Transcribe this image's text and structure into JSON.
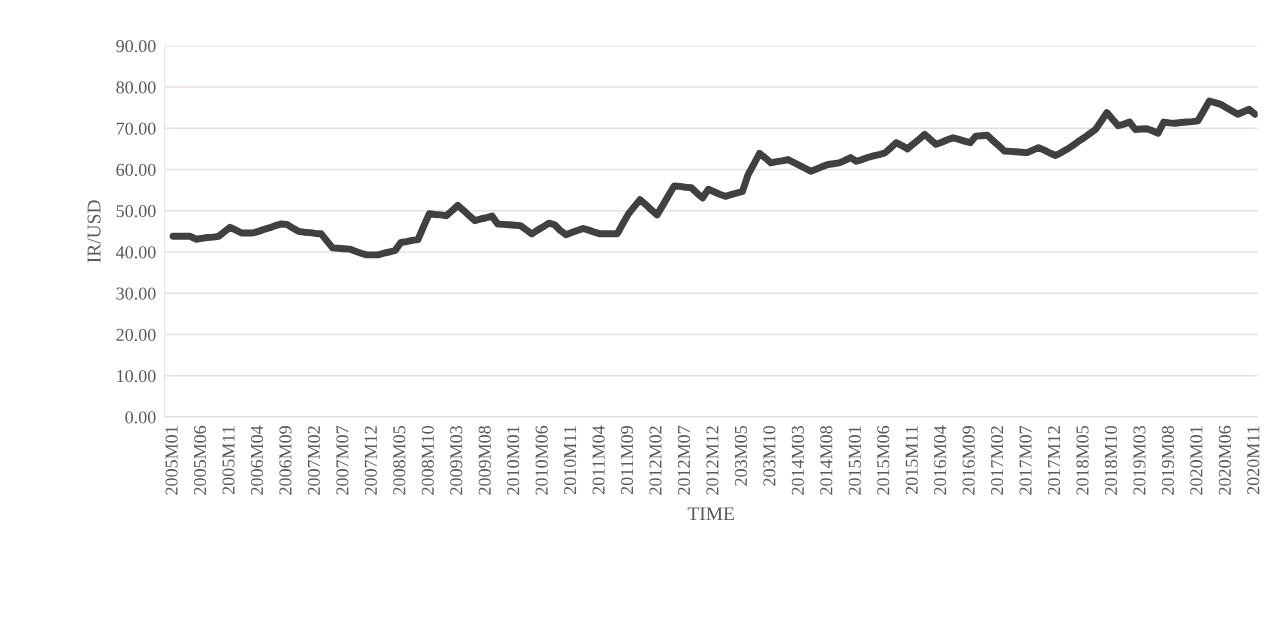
{
  "chart_data": {
    "type": "line",
    "xlabel": "TIME",
    "ylabel": "IR/USD",
    "categories": [
      "2005M01",
      null,
      null,
      null,
      null,
      "2005M06",
      null,
      null,
      null,
      null,
      "2005M11",
      null,
      null,
      null,
      null,
      "2006M04",
      null,
      null,
      null,
      null,
      "2006M09",
      null,
      null,
      null,
      null,
      "2007M02",
      null,
      null,
      null,
      null,
      "2007M07",
      null,
      null,
      null,
      null,
      "2007M12",
      null,
      null,
      null,
      null,
      "2008M05",
      null,
      null,
      null,
      null,
      "2008M10",
      null,
      null,
      null,
      null,
      "2009M03",
      null,
      null,
      null,
      null,
      "2009M08",
      null,
      null,
      null,
      null,
      "2010M01",
      null,
      null,
      null,
      null,
      "2010M06",
      null,
      null,
      null,
      null,
      "2010M11",
      null,
      null,
      null,
      null,
      "2011M04",
      null,
      null,
      null,
      null,
      "2011M09",
      null,
      null,
      null,
      null,
      "2012M02",
      null,
      null,
      null,
      null,
      "2012M07",
      null,
      null,
      null,
      null,
      "2012M12",
      null,
      null,
      null,
      null,
      "203M05",
      null,
      null,
      null,
      null,
      "203M10",
      null,
      null,
      null,
      null,
      "2014M03",
      null,
      null,
      null,
      null,
      "2014M08",
      null,
      null,
      null,
      null,
      "2015M01",
      null,
      null,
      null,
      null,
      "2015M06",
      null,
      null,
      null,
      null,
      "2015M11",
      null,
      null,
      null,
      null,
      "2016M04",
      null,
      null,
      null,
      null,
      "2016M09",
      null,
      null,
      null,
      null,
      "2017M02",
      null,
      null,
      null,
      null,
      "2017M07",
      null,
      null,
      null,
      null,
      "2017M12",
      null,
      null,
      null,
      null,
      "2018M05",
      null,
      null,
      null,
      null,
      "2018M10",
      null,
      null,
      null,
      null,
      "2019M03",
      null,
      null,
      null,
      null,
      "2019M08",
      null,
      null,
      null,
      null,
      "2020M01",
      null,
      null,
      null,
      null,
      "2020M06",
      null,
      null,
      null,
      null,
      "2020M11"
    ],
    "series": [
      {
        "color": "#404040",
        "values": [
          43.8,
          43.8,
          43.8,
          43.8,
          43.1,
          43.3,
          43.5,
          43.6,
          43.8,
          44.9,
          46.0,
          45.3,
          44.6,
          44.6,
          44.6,
          45.0,
          45.5,
          45.9,
          46.4,
          46.8,
          46.7,
          45.8,
          45.0,
          44.8,
          44.7,
          44.5,
          44.4,
          42.7,
          41.0,
          40.9,
          40.8,
          40.7,
          40.2,
          39.7,
          39.3,
          39.3,
          39.3,
          39.7,
          40.0,
          40.4,
          42.3,
          42.5,
          42.8,
          43.0,
          46.2,
          49.3,
          49.1,
          49.0,
          48.8,
          50.0,
          51.3,
          50.1,
          48.8,
          47.6,
          48.0,
          48.3,
          48.7,
          46.8,
          46.7,
          46.6,
          46.5,
          46.4,
          45.4,
          44.4,
          45.3,
          46.1,
          47.0,
          46.6,
          45.2,
          44.2,
          44.7,
          45.2,
          45.7,
          45.3,
          44.8,
          44.4,
          44.4,
          44.4,
          44.4,
          46.9,
          49.3,
          51.0,
          52.7,
          51.5,
          50.2,
          49.0,
          51.3,
          53.7,
          56.0,
          55.9,
          55.7,
          55.6,
          54.3,
          53.1,
          55.2,
          54.6,
          54.0,
          53.5,
          53.9,
          54.3,
          54.7,
          58.8,
          61.3,
          63.9,
          62.8,
          61.6,
          61.9,
          62.1,
          62.4,
          61.7,
          61.0,
          60.3,
          59.6,
          60.1,
          60.7,
          61.2,
          61.4,
          61.6,
          62.2,
          62.9,
          62.0,
          62.4,
          62.9,
          63.3,
          63.6,
          64.0,
          65.2,
          66.5,
          65.8,
          65.0,
          66.2,
          67.3,
          68.5,
          67.3,
          66.1,
          66.6,
          67.2,
          67.7,
          67.3,
          66.9,
          66.5,
          68.1,
          68.2,
          68.3,
          67.0,
          65.8,
          64.5,
          64.4,
          64.3,
          64.2,
          64.1,
          64.7,
          65.3,
          64.7,
          64.0,
          63.4,
          64.1,
          64.9,
          65.8,
          66.8,
          67.7,
          68.7,
          69.7,
          71.7,
          73.8,
          72.2,
          70.6,
          71.0,
          71.5,
          69.7,
          69.8,
          69.9,
          69.4,
          68.8,
          71.5,
          71.3,
          71.2,
          71.4,
          71.5,
          71.6,
          71.8,
          74.2,
          76.6,
          76.2,
          75.8,
          75.0,
          74.2,
          73.4,
          74.0,
          74.6,
          73.4
        ]
      }
    ],
    "ylim": [
      0,
      90
    ],
    "yticks": [
      {
        "value": 0,
        "label": "0.00"
      },
      {
        "value": 10,
        "label": "10.00"
      },
      {
        "value": 20,
        "label": "20.00"
      },
      {
        "value": 30,
        "label": "30.00"
      },
      {
        "value": 40,
        "label": "40.00"
      },
      {
        "value": 50,
        "label": "50.00"
      },
      {
        "value": 60,
        "label": "60.00"
      },
      {
        "value": 70,
        "label": "70.00"
      },
      {
        "value": 80,
        "label": "80.00"
      },
      {
        "value": 90,
        "label": "90.00"
      }
    ],
    "grid": "y",
    "marker": "none",
    "line_style": "solid"
  }
}
